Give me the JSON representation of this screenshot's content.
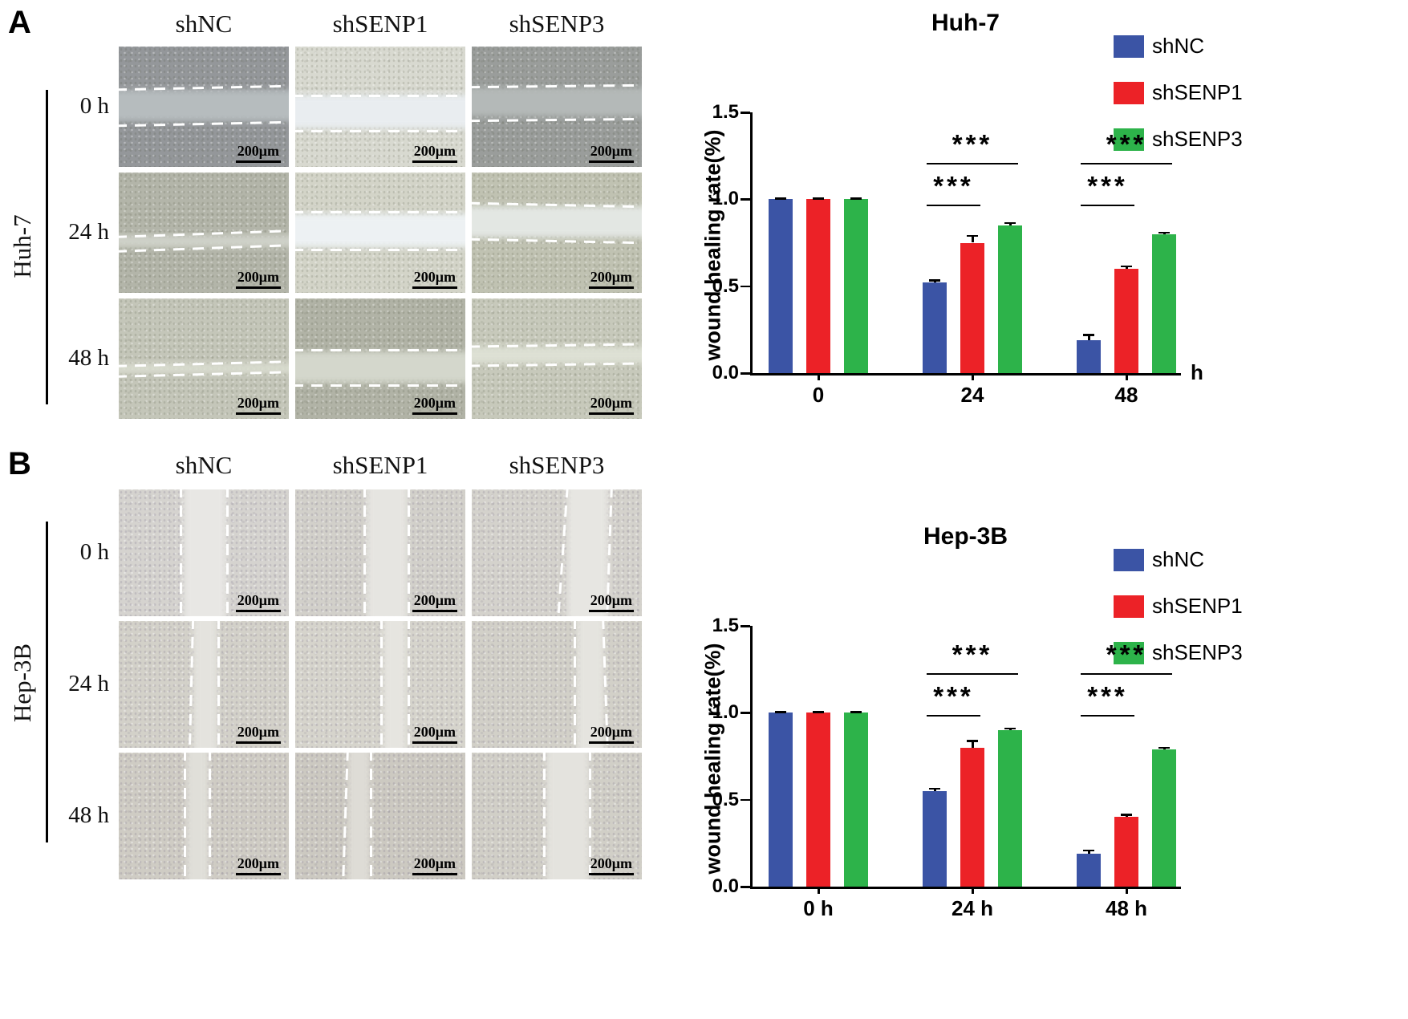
{
  "panels": [
    {
      "label": "A",
      "cell_line": "Huh-7",
      "columns": [
        "shNC",
        "shSENP1",
        "shSENP3"
      ],
      "rows": [
        "0 h",
        "24 h",
        "48 h"
      ],
      "scale_label": "200μm"
    },
    {
      "label": "B",
      "cell_line": "Hep-3B",
      "columns": [
        "shNC",
        "shSENP1",
        "shSENP3"
      ],
      "rows": [
        "0 h",
        "24 h",
        "48 h"
      ],
      "scale_label": "200μm"
    }
  ],
  "colors": {
    "shNC": "#3b54a5",
    "shSENP1": "#ec2227",
    "shSENP3": "#2db34a"
  },
  "chart_data": [
    {
      "type": "bar",
      "title": "Huh-7",
      "ylabel": "wound healing rate(%)",
      "ylim": [
        0,
        1.5
      ],
      "yticks": [
        0.0,
        0.5,
        1.0,
        1.5
      ],
      "categories": [
        "0",
        "24",
        "48"
      ],
      "x_axis_suffix": "h",
      "legend_position": "top-right",
      "series": [
        {
          "name": "shNC",
          "color": "#3b54a5",
          "values": [
            1.0,
            0.52,
            0.19
          ],
          "errors": [
            0.005,
            0.015,
            0.03
          ]
        },
        {
          "name": "shSENP1",
          "color": "#ec2227",
          "values": [
            1.0,
            0.75,
            0.6
          ],
          "errors": [
            0.005,
            0.04,
            0.015
          ]
        },
        {
          "name": "shSENP3",
          "color": "#2db34a",
          "values": [
            1.0,
            0.85,
            0.8
          ],
          "errors": [
            0.005,
            0.015,
            0.01
          ]
        }
      ],
      "annotations": [
        {
          "group": 1,
          "from": 0,
          "to": 1,
          "y": 0.97,
          "label": "***"
        },
        {
          "group": 1,
          "from": 0,
          "to": 2,
          "y": 1.21,
          "label": "***"
        },
        {
          "group": 2,
          "from": 0,
          "to": 1,
          "y": 0.97,
          "label": "***"
        },
        {
          "group": 2,
          "from": 0,
          "to": 2,
          "y": 1.21,
          "label": "***"
        }
      ]
    },
    {
      "type": "bar",
      "title": "Hep-3B",
      "ylabel": "wound healing rate(%)",
      "ylim": [
        0,
        1.5
      ],
      "yticks": [
        0.0,
        0.5,
        1.0,
        1.5
      ],
      "categories": [
        "0 h",
        "24 h",
        "48 h"
      ],
      "x_axis_suffix": "",
      "legend_position": "top-right",
      "series": [
        {
          "name": "shNC",
          "color": "#3b54a5",
          "values": [
            1.0,
            0.55,
            0.19
          ],
          "errors": [
            0.005,
            0.015,
            0.02
          ]
        },
        {
          "name": "shSENP1",
          "color": "#ec2227",
          "values": [
            1.0,
            0.8,
            0.4
          ],
          "errors": [
            0.005,
            0.04,
            0.015
          ]
        },
        {
          "name": "shSENP3",
          "color": "#2db34a",
          "values": [
            1.0,
            0.9,
            0.79
          ],
          "errors": [
            0.005,
            0.01,
            0.01
          ]
        }
      ],
      "annotations": [
        {
          "group": 1,
          "from": 0,
          "to": 1,
          "y": 0.99,
          "label": "***"
        },
        {
          "group": 1,
          "from": 0,
          "to": 2,
          "y": 1.23,
          "label": "***"
        },
        {
          "group": 2,
          "from": 0,
          "to": 1,
          "y": 0.99,
          "label": "***"
        },
        {
          "group": 2,
          "from": 0,
          "to": 2,
          "y": 1.23,
          "label": "***"
        }
      ]
    }
  ]
}
